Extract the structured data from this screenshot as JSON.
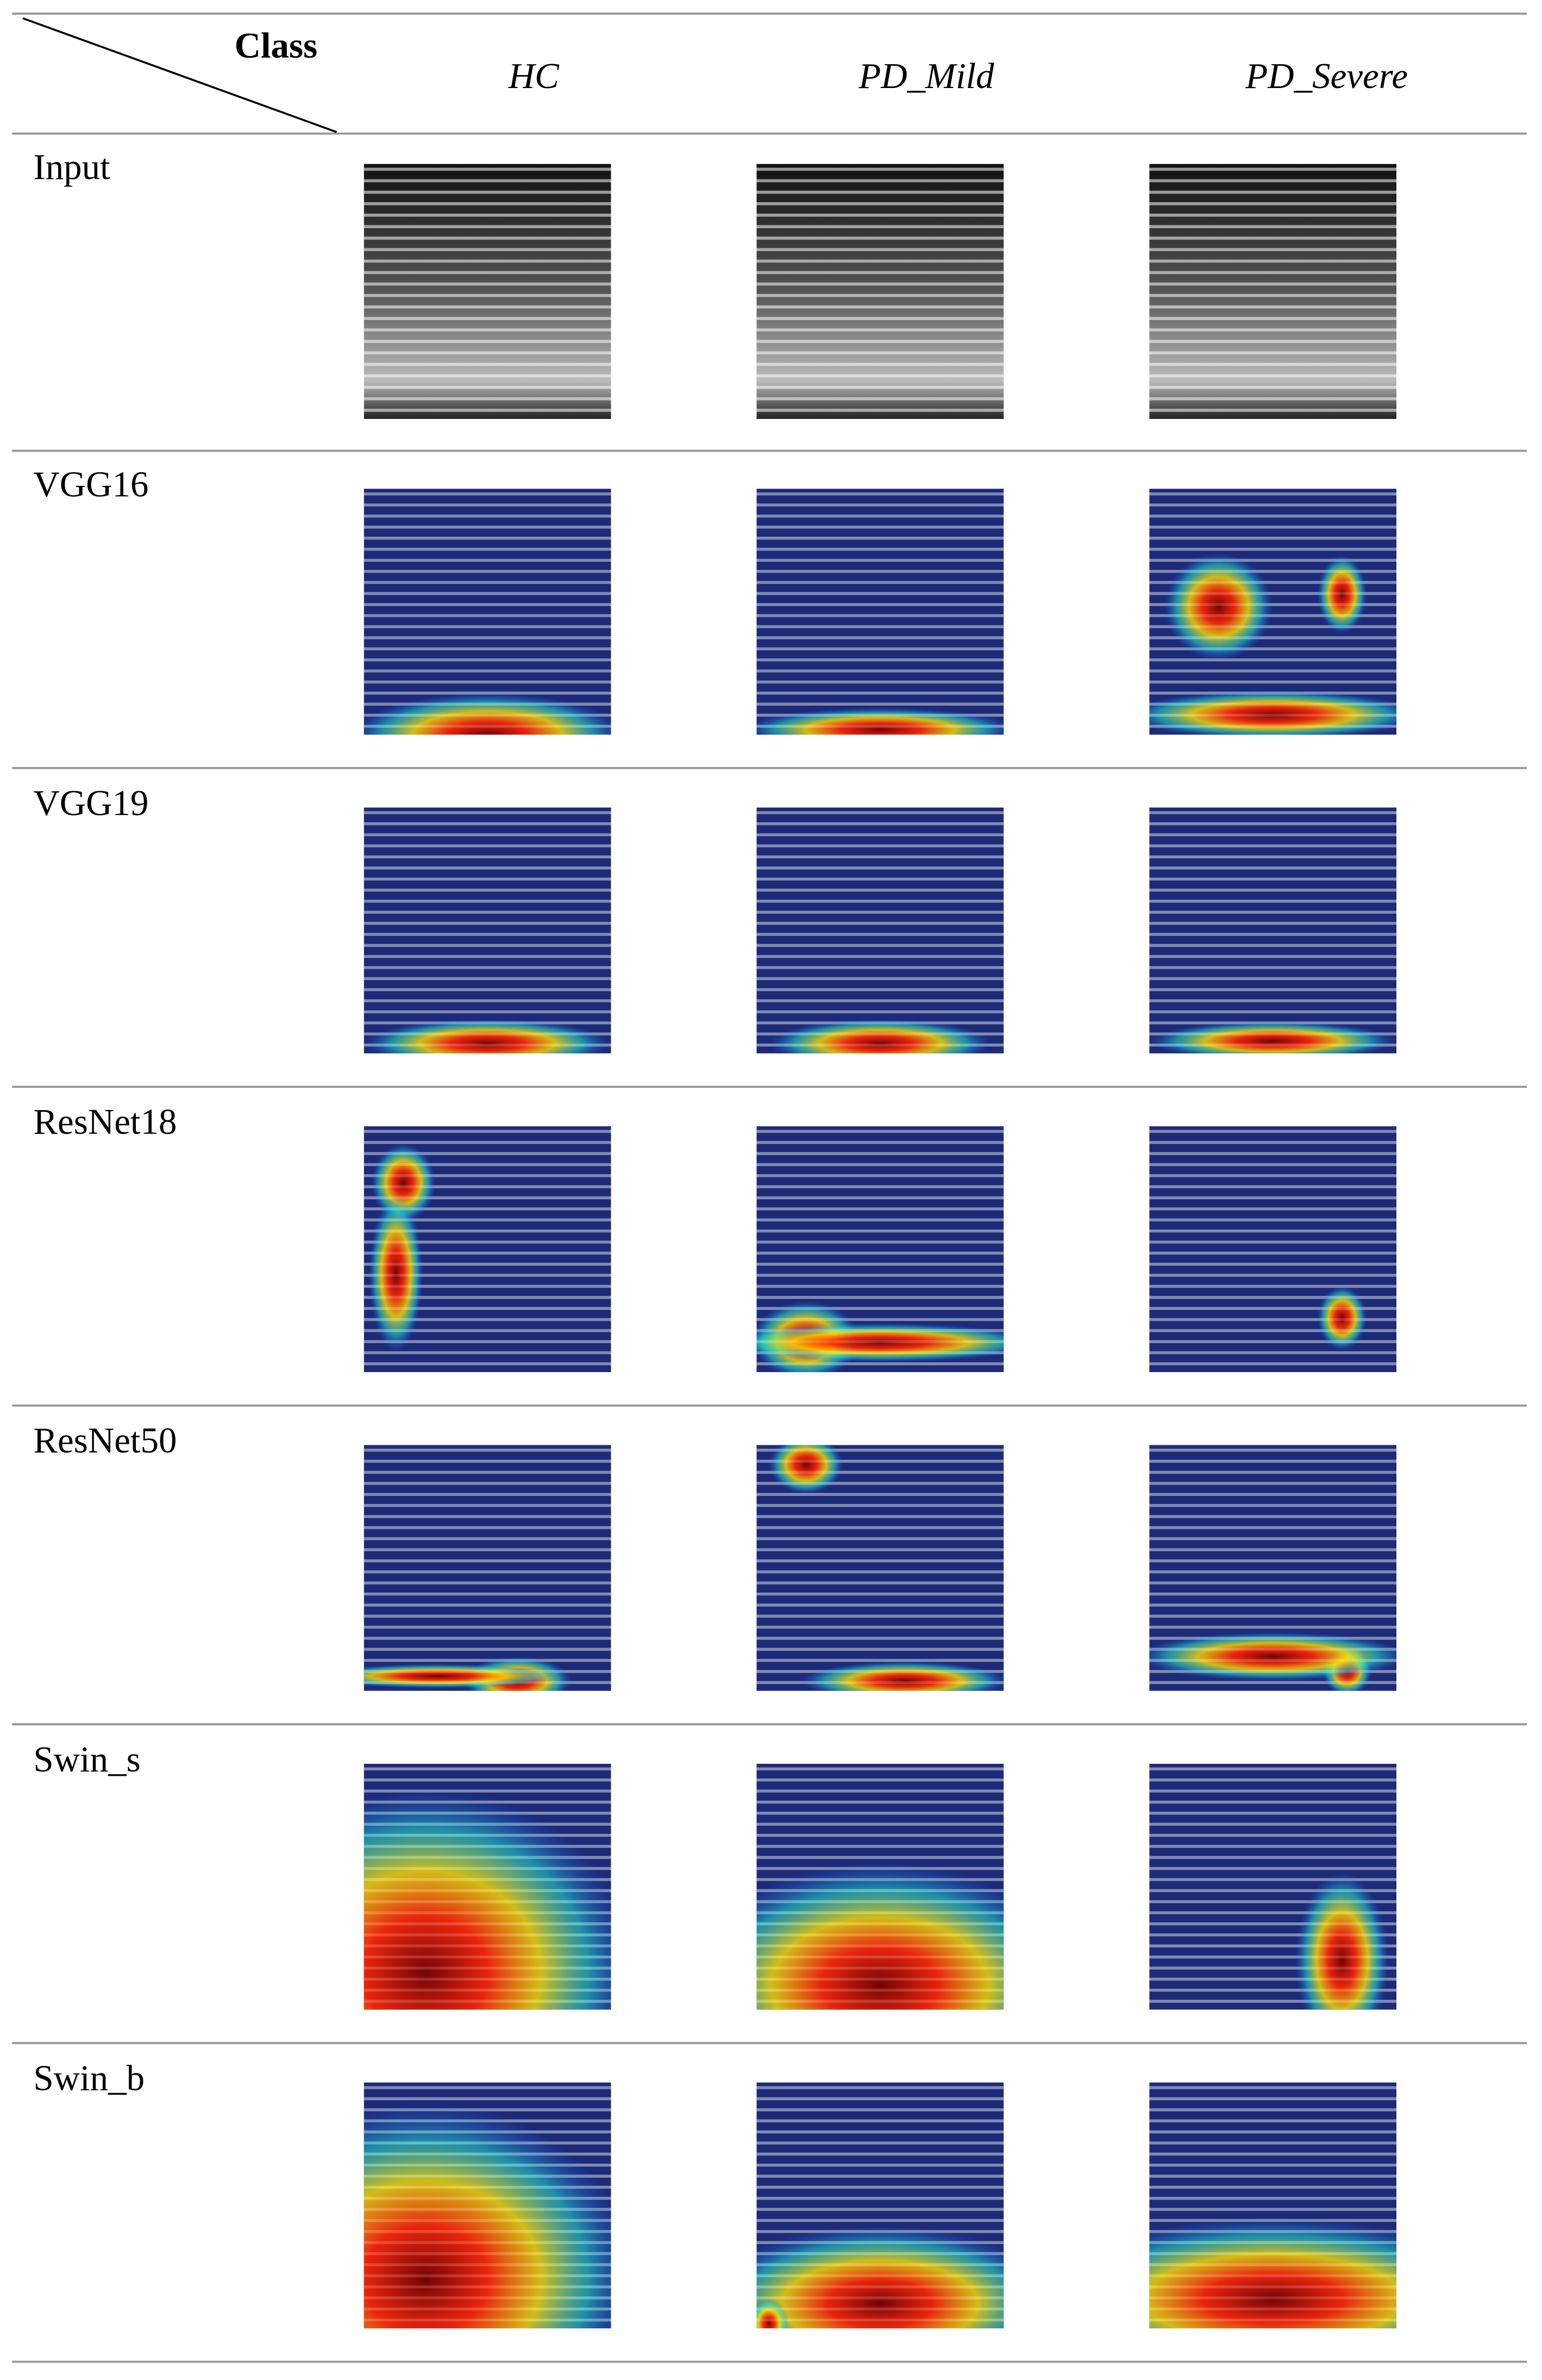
{
  "header": {
    "corner": "Class",
    "columns": [
      "HC",
      "PD_Mild",
      "PD_Severe"
    ]
  },
  "rows": [
    "Input",
    "VGG16",
    "VGG19",
    "ResNet18",
    "ResNet50",
    "Swin_s",
    "Swin_b"
  ]
}
